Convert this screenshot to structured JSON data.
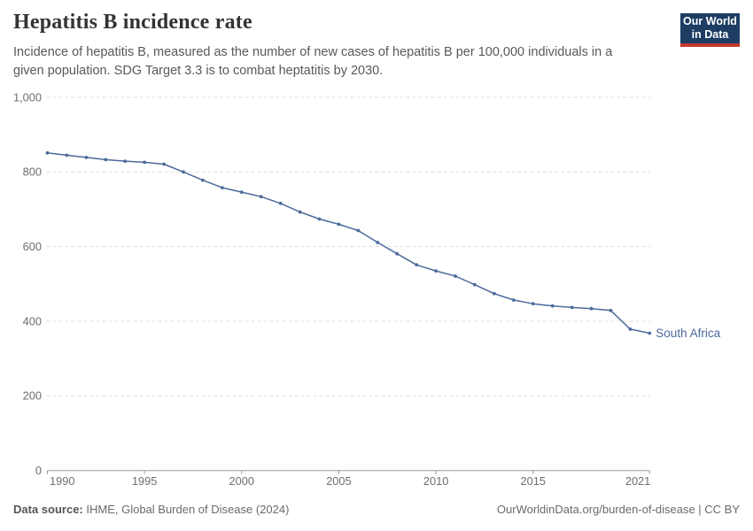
{
  "header": {
    "title": "Hepatitis B incidence rate",
    "subtitle": "Incidence of hepatitis B, measured as the number of new cases of hepatitis B per 100,000 individuals in a given population. SDG Target 3.3 is to combat heptatitis by 2030.",
    "logo": {
      "line1": "Our World",
      "line2": "in Data",
      "bg_color": "#1d3d63",
      "stripe_color": "#c5392f"
    }
  },
  "chart_data": {
    "type": "line",
    "title": "Hepatitis B incidence rate",
    "xlabel": "",
    "ylabel": "",
    "grid": "horizontal-dashed",
    "legend_position": "end-of-line-label",
    "xlim": [
      1990,
      2021
    ],
    "ylim": [
      0,
      1000
    ],
    "x": [
      1990,
      1991,
      1992,
      1993,
      1994,
      1995,
      1996,
      1997,
      1998,
      1999,
      2000,
      2001,
      2002,
      2003,
      2004,
      2005,
      2006,
      2007,
      2008,
      2009,
      2010,
      2011,
      2012,
      2013,
      2014,
      2015,
      2016,
      2017,
      2018,
      2019,
      2020,
      2021
    ],
    "series": [
      {
        "name": "South Africa",
        "color": "#4C6A9C",
        "values": [
          851,
          845,
          839,
          833,
          829,
          826,
          821,
          800,
          778,
          758,
          746,
          734,
          716,
          693,
          674,
          660,
          643,
          611,
          581,
          551,
          535,
          521,
          498,
          474,
          457,
          447,
          441,
          437,
          434,
          429,
          379,
          368
        ]
      }
    ],
    "y_ticks": [
      {
        "value": 0,
        "label": "0"
      },
      {
        "value": 200,
        "label": "200"
      },
      {
        "value": 400,
        "label": "400"
      },
      {
        "value": 600,
        "label": "600"
      },
      {
        "value": 800,
        "label": "800"
      },
      {
        "value": 1000,
        "label": "1,000"
      }
    ],
    "x_ticks": [
      {
        "value": 1990,
        "label": "1990"
      },
      {
        "value": 1995,
        "label": "1995"
      },
      {
        "value": 2000,
        "label": "2000"
      },
      {
        "value": 2005,
        "label": "2005"
      },
      {
        "value": 2010,
        "label": "2010"
      },
      {
        "value": 2015,
        "label": "2015"
      },
      {
        "value": 2021,
        "label": "2021"
      }
    ],
    "colors": {
      "grid": "#dedede",
      "axis": "#999999",
      "tick_text": "#6e6e6e"
    }
  },
  "footer": {
    "source_label": "Data source:",
    "source_value": " IHME, Global Burden of Disease (2024)",
    "credit": "OurWorldinData.org/burden-of-disease | CC BY"
  }
}
